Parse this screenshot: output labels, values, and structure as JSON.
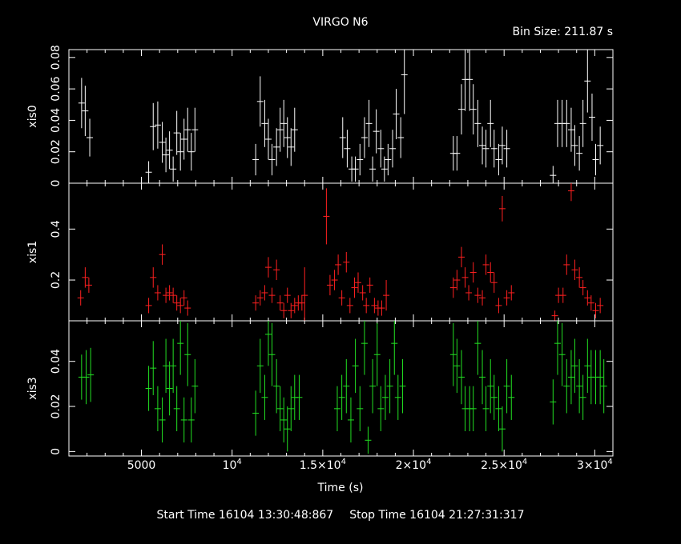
{
  "title": "VIRGO N6",
  "bin_label": "Bin Size: 211.87 s",
  "footer": {
    "start": "Start Time 16104 13:30:48:867",
    "stop": "Stop Time 16104 21:27:31:317"
  },
  "chart_data": {
    "type": "scatter",
    "xlabel": "Time (s)",
    "xlim": [
      1000,
      31000
    ],
    "x_ticks": [
      {
        "value": 5000,
        "label": "5000"
      },
      {
        "value": 10000,
        "label": "10",
        "exp": "4"
      },
      {
        "value": 15000,
        "label": "1.5×10",
        "exp": "4"
      },
      {
        "value": 20000,
        "label": "2×10",
        "exp": "4"
      },
      {
        "value": 25000,
        "label": "2.5×10",
        "exp": "4"
      },
      {
        "value": 30000,
        "label": "3×10",
        "exp": "4"
      }
    ],
    "panels": [
      {
        "name": "xis0",
        "color": "#ffffff",
        "ylim": [
          0,
          0.085
        ],
        "yticks": [
          0,
          0.02,
          0.04,
          0.06,
          0.08
        ],
        "yticklabels": [
          "0",
          "0.02",
          "0.04",
          "0.06",
          "0.08"
        ],
        "points": [
          [
            1700,
            0.051,
            0.016
          ],
          [
            1900,
            0.046,
            0.016
          ],
          [
            2150,
            0.029,
            0.012
          ],
          [
            5400,
            0.007,
            0.007
          ],
          [
            5650,
            0.036,
            0.015
          ],
          [
            5900,
            0.037,
            0.015
          ],
          [
            6150,
            0.026,
            0.013
          ],
          [
            6350,
            0.018,
            0.011
          ],
          [
            6550,
            0.021,
            0.012
          ],
          [
            6750,
            0.009,
            0.008
          ],
          [
            6950,
            0.032,
            0.014
          ],
          [
            7150,
            0.02,
            0.012
          ],
          [
            7350,
            0.028,
            0.013
          ],
          [
            7550,
            0.034,
            0.014
          ],
          [
            7750,
            0.02,
            0.012
          ],
          [
            7950,
            0.034,
            0.014
          ],
          [
            11300,
            0.015,
            0.01
          ],
          [
            11550,
            0.052,
            0.016
          ],
          [
            11800,
            0.038,
            0.015
          ],
          [
            12000,
            0.028,
            0.013
          ],
          [
            12200,
            0.015,
            0.01
          ],
          [
            12450,
            0.023,
            0.012
          ],
          [
            12650,
            0.034,
            0.014
          ],
          [
            12850,
            0.038,
            0.015
          ],
          [
            13050,
            0.029,
            0.013
          ],
          [
            13250,
            0.023,
            0.012
          ],
          [
            13450,
            0.034,
            0.014
          ],
          [
            16100,
            0.029,
            0.013
          ],
          [
            16350,
            0.022,
            0.012
          ],
          [
            16600,
            0.009,
            0.008
          ],
          [
            16800,
            0.009,
            0.008
          ],
          [
            17050,
            0.015,
            0.01
          ],
          [
            17300,
            0.029,
            0.013
          ],
          [
            17550,
            0.038,
            0.015
          ],
          [
            17750,
            0.009,
            0.008
          ],
          [
            17950,
            0.033,
            0.014
          ],
          [
            18200,
            0.022,
            0.012
          ],
          [
            18400,
            0.009,
            0.008
          ],
          [
            18600,
            0.015,
            0.01
          ],
          [
            18850,
            0.022,
            0.012
          ],
          [
            19050,
            0.044,
            0.016
          ],
          [
            19300,
            0.029,
            0.013
          ],
          [
            19500,
            0.069,
            0.025
          ],
          [
            22200,
            0.019,
            0.011
          ],
          [
            22400,
            0.019,
            0.011
          ],
          [
            22650,
            0.047,
            0.016
          ],
          [
            22850,
            0.066,
            0.02
          ],
          [
            23100,
            0.066,
            0.02
          ],
          [
            23300,
            0.047,
            0.016
          ],
          [
            23550,
            0.038,
            0.015
          ],
          [
            23800,
            0.024,
            0.012
          ],
          [
            24000,
            0.022,
            0.012
          ],
          [
            24250,
            0.038,
            0.015
          ],
          [
            24450,
            0.022,
            0.012
          ],
          [
            24700,
            0.015,
            0.01
          ],
          [
            24900,
            0.024,
            0.012
          ],
          [
            25150,
            0.022,
            0.012
          ],
          [
            27700,
            0.005,
            0.006
          ],
          [
            27950,
            0.038,
            0.015
          ],
          [
            28200,
            0.038,
            0.015
          ],
          [
            28450,
            0.038,
            0.015
          ],
          [
            28700,
            0.034,
            0.014
          ],
          [
            28900,
            0.024,
            0.013
          ],
          [
            29150,
            0.019,
            0.011
          ],
          [
            29350,
            0.038,
            0.015
          ],
          [
            29600,
            0.065,
            0.02
          ],
          [
            29850,
            0.042,
            0.015
          ],
          [
            30050,
            0.015,
            0.01
          ],
          [
            30300,
            0.024,
            0.012
          ]
        ]
      },
      {
        "name": "xis1",
        "color": "#ff2020",
        "ylim": [
          0.04,
          0.58
        ],
        "yticks": [
          0.2,
          0.4
        ],
        "yticklabels": [
          "0.2",
          "0.4"
        ],
        "points": [
          [
            1650,
            0.13,
            0.03
          ],
          [
            1900,
            0.21,
            0.04
          ],
          [
            2100,
            0.18,
            0.03
          ],
          [
            5400,
            0.1,
            0.03
          ],
          [
            5650,
            0.21,
            0.04
          ],
          [
            5900,
            0.15,
            0.03
          ],
          [
            6150,
            0.3,
            0.04
          ],
          [
            6350,
            0.14,
            0.03
          ],
          [
            6550,
            0.15,
            0.03
          ],
          [
            6750,
            0.14,
            0.03
          ],
          [
            6950,
            0.11,
            0.03
          ],
          [
            7150,
            0.1,
            0.03
          ],
          [
            7350,
            0.13,
            0.03
          ],
          [
            7550,
            0.09,
            0.03
          ],
          [
            11300,
            0.11,
            0.03
          ],
          [
            11550,
            0.13,
            0.03
          ],
          [
            11800,
            0.15,
            0.03
          ],
          [
            12000,
            0.25,
            0.04
          ],
          [
            12200,
            0.14,
            0.03
          ],
          [
            12450,
            0.24,
            0.04
          ],
          [
            12650,
            0.11,
            0.03
          ],
          [
            12850,
            0.08,
            0.03
          ],
          [
            13050,
            0.14,
            0.03
          ],
          [
            13250,
            0.08,
            0.03
          ],
          [
            13450,
            0.1,
            0.03
          ],
          [
            13650,
            0.11,
            0.03
          ],
          [
            13850,
            0.11,
            0.03
          ],
          [
            14000,
            0.14,
            0.11
          ],
          [
            15200,
            0.45,
            0.11
          ],
          [
            15400,
            0.18,
            0.04
          ],
          [
            15650,
            0.2,
            0.04
          ],
          [
            15850,
            0.26,
            0.04
          ],
          [
            16050,
            0.13,
            0.03
          ],
          [
            16300,
            0.27,
            0.04
          ],
          [
            16500,
            0.1,
            0.03
          ],
          [
            16750,
            0.17,
            0.04
          ],
          [
            16950,
            0.19,
            0.04
          ],
          [
            17200,
            0.15,
            0.03
          ],
          [
            17400,
            0.1,
            0.03
          ],
          [
            17600,
            0.18,
            0.03
          ],
          [
            17850,
            0.1,
            0.03
          ],
          [
            18050,
            0.09,
            0.03
          ],
          [
            18250,
            0.09,
            0.03
          ],
          [
            18500,
            0.14,
            0.06
          ],
          [
            22200,
            0.17,
            0.04
          ],
          [
            22400,
            0.2,
            0.04
          ],
          [
            22650,
            0.29,
            0.04
          ],
          [
            22850,
            0.21,
            0.04
          ],
          [
            23050,
            0.15,
            0.03
          ],
          [
            23300,
            0.23,
            0.04
          ],
          [
            23550,
            0.14,
            0.03
          ],
          [
            23800,
            0.13,
            0.03
          ],
          [
            24000,
            0.26,
            0.04
          ],
          [
            24250,
            0.23,
            0.04
          ],
          [
            24450,
            0.19,
            0.04
          ],
          [
            24700,
            0.1,
            0.03
          ],
          [
            24900,
            0.48,
            0.05
          ],
          [
            25150,
            0.13,
            0.03
          ],
          [
            25400,
            0.15,
            0.03
          ],
          [
            27800,
            0.06,
            0.02
          ],
          [
            28000,
            0.14,
            0.03
          ],
          [
            28250,
            0.14,
            0.03
          ],
          [
            28450,
            0.26,
            0.04
          ],
          [
            28700,
            0.55,
            0.04
          ],
          [
            28900,
            0.24,
            0.04
          ],
          [
            29150,
            0.21,
            0.04
          ],
          [
            29350,
            0.17,
            0.03
          ],
          [
            29600,
            0.13,
            0.03
          ],
          [
            29800,
            0.11,
            0.03
          ],
          [
            30050,
            0.08,
            0.03
          ],
          [
            30300,
            0.1,
            0.03
          ]
        ]
      },
      {
        "name": "xis3",
        "color": "#22e022",
        "ylim": [
          -0.002,
          0.058
        ],
        "yticks": [
          0,
          0.02,
          0.04
        ],
        "yticklabels": [
          "0",
          "0.02",
          "0.04"
        ],
        "points": [
          [
            1700,
            0.033,
            0.01
          ],
          [
            1950,
            0.033,
            0.012
          ],
          [
            2200,
            0.034,
            0.012
          ],
          [
            5400,
            0.028,
            0.01
          ],
          [
            5650,
            0.037,
            0.012
          ],
          [
            5900,
            0.019,
            0.01
          ],
          [
            6150,
            0.014,
            0.01
          ],
          [
            6350,
            0.038,
            0.012
          ],
          [
            6550,
            0.028,
            0.012
          ],
          [
            6750,
            0.038,
            0.012
          ],
          [
            6950,
            0.019,
            0.01
          ],
          [
            7150,
            0.048,
            0.014
          ],
          [
            7350,
            0.014,
            0.01
          ],
          [
            7550,
            0.043,
            0.014
          ],
          [
            7750,
            0.014,
            0.01
          ],
          [
            7950,
            0.029,
            0.012
          ],
          [
            11300,
            0.017,
            0.01
          ],
          [
            11550,
            0.038,
            0.012
          ],
          [
            11800,
            0.024,
            0.01
          ],
          [
            12000,
            0.052,
            0.014
          ],
          [
            12200,
            0.043,
            0.014
          ],
          [
            12450,
            0.029,
            0.012
          ],
          [
            12650,
            0.019,
            0.01
          ],
          [
            12850,
            0.014,
            0.01
          ],
          [
            13050,
            0.01,
            0.01
          ],
          [
            13250,
            0.019,
            0.01
          ],
          [
            13450,
            0.024,
            0.01
          ],
          [
            13700,
            0.024,
            0.01
          ],
          [
            15800,
            0.019,
            0.01
          ],
          [
            16050,
            0.024,
            0.01
          ],
          [
            16300,
            0.029,
            0.012
          ],
          [
            16550,
            0.014,
            0.01
          ],
          [
            16800,
            0.038,
            0.012
          ],
          [
            17050,
            0.019,
            0.01
          ],
          [
            17300,
            0.048,
            0.014
          ],
          [
            17500,
            0.005,
            0.006
          ],
          [
            17750,
            0.029,
            0.012
          ],
          [
            18000,
            0.043,
            0.014
          ],
          [
            18200,
            0.019,
            0.01
          ],
          [
            18450,
            0.024,
            0.01
          ],
          [
            18700,
            0.029,
            0.012
          ],
          [
            18950,
            0.048,
            0.014
          ],
          [
            19150,
            0.024,
            0.01
          ],
          [
            19400,
            0.029,
            0.012
          ],
          [
            22200,
            0.043,
            0.014
          ],
          [
            22400,
            0.038,
            0.012
          ],
          [
            22650,
            0.033,
            0.012
          ],
          [
            22850,
            0.019,
            0.01
          ],
          [
            23100,
            0.019,
            0.01
          ],
          [
            23300,
            0.019,
            0.01
          ],
          [
            23550,
            0.048,
            0.014
          ],
          [
            23800,
            0.033,
            0.012
          ],
          [
            24000,
            0.019,
            0.01
          ],
          [
            24250,
            0.029,
            0.012
          ],
          [
            24450,
            0.024,
            0.01
          ],
          [
            24700,
            0.019,
            0.01
          ],
          [
            24900,
            0.01,
            0.01
          ],
          [
            25150,
            0.029,
            0.012
          ],
          [
            25400,
            0.024,
            0.01
          ],
          [
            27700,
            0.022,
            0.01
          ],
          [
            27950,
            0.048,
            0.014
          ],
          [
            28200,
            0.043,
            0.014
          ],
          [
            28450,
            0.029,
            0.012
          ],
          [
            28700,
            0.033,
            0.012
          ],
          [
            28900,
            0.038,
            0.012
          ],
          [
            29150,
            0.029,
            0.012
          ],
          [
            29350,
            0.024,
            0.01
          ],
          [
            29600,
            0.038,
            0.012
          ],
          [
            29800,
            0.033,
            0.012
          ],
          [
            30050,
            0.033,
            0.012
          ],
          [
            30300,
            0.033,
            0.012
          ],
          [
            30500,
            0.029,
            0.012
          ]
        ]
      }
    ]
  }
}
